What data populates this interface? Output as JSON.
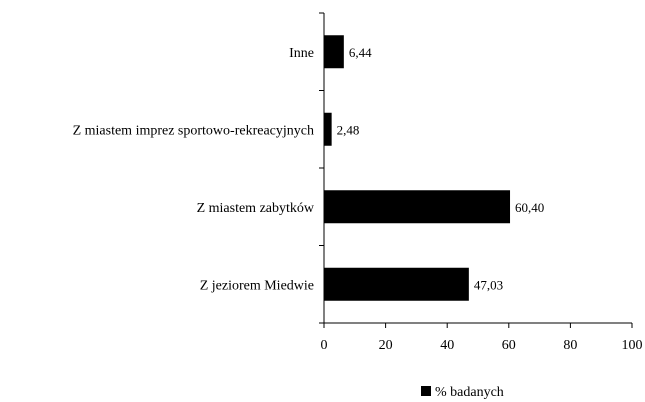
{
  "chart_data": {
    "type": "bar",
    "orientation": "horizontal",
    "categories": [
      "Z jeziorem Miedwie",
      "Z miastem zabytków",
      "Z miastem imprez sportowo-rekreacyjnych",
      "Inne"
    ],
    "series": [
      {
        "name": "% badanych",
        "values": [
          47.03,
          60.4,
          2.48,
          6.44
        ],
        "labels": [
          "47,03",
          "60,40",
          "2,48",
          "6,44"
        ],
        "color": "#000000"
      }
    ],
    "xlim": [
      0,
      100
    ],
    "xticks": [
      0,
      20,
      40,
      60,
      80,
      100
    ],
    "xtick_labels": [
      "0",
      "20",
      "40",
      "60",
      "80",
      "100"
    ],
    "grid": false,
    "legend_position": "bottom"
  },
  "legend": {
    "label": "% badanych"
  }
}
